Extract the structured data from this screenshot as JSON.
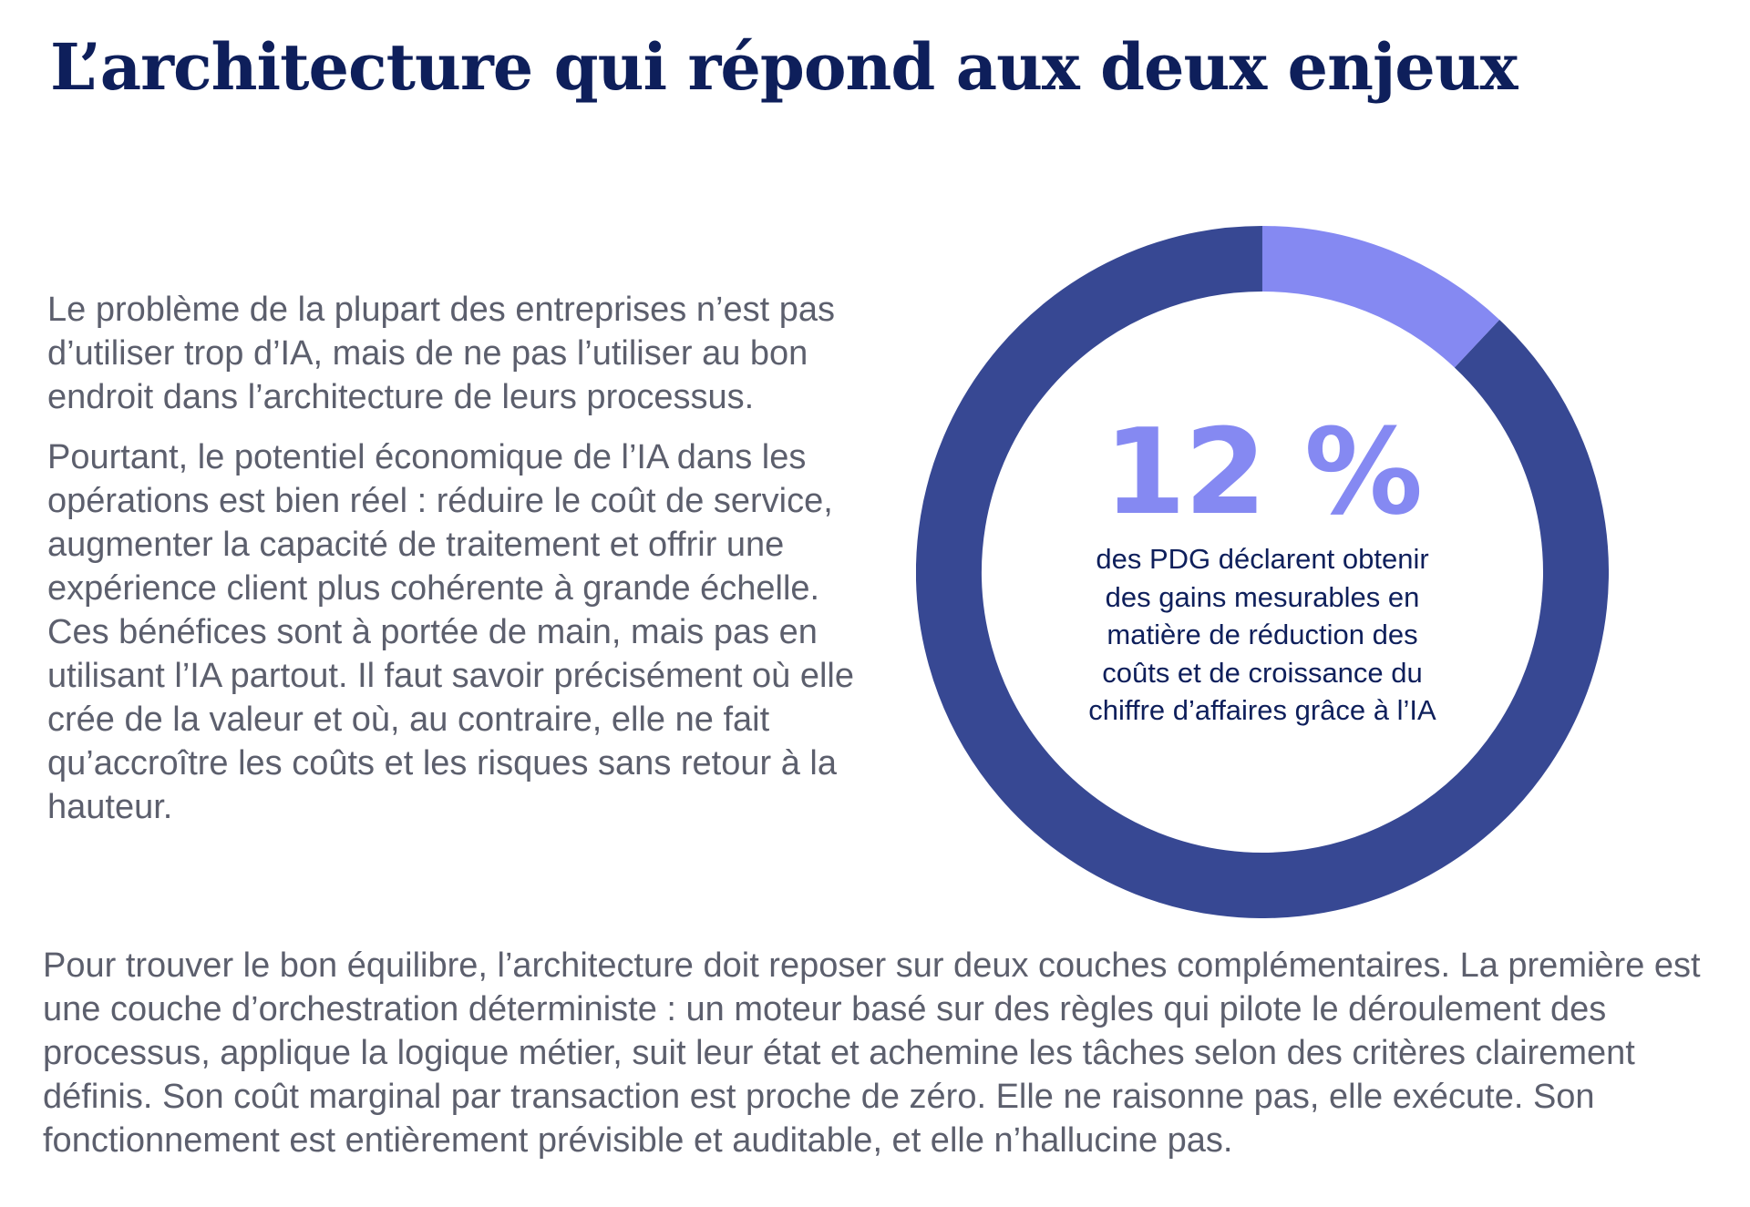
{
  "title": "L’architecture qui répond aux deux enjeux",
  "intro": {
    "paragraph_1": "Le problème de la plupart des entreprises n’est pas d’utiliser trop d’IA, mais de ne pas l’utiliser au bon endroit dans l’architecture de leurs processus.",
    "paragraph_2": "Pourtant, le potentiel économique de l’IA dans les opérations est bien réel : réduire le coût de service, augmenter la capacité de traitement et offrir une expérience client plus cohérente à grande échelle. Ces bénéfices sont à portée de main, mais pas en utilisant l’IA partout. Il faut savoir précisément où elle crée de la valeur et où, au contraire, elle ne fait qu’accroître les coûts et les risques sans retour à la hauteur."
  },
  "stat": {
    "value_label": "12 %",
    "percent": 12,
    "caption": "des PDG déclarent obtenir des gains mesurables en matière de réduction des coûts et de croissance du chiffre d’affaires grâce à l’IA",
    "colors": {
      "highlight": "#8589f2",
      "remainder": "#374893"
    }
  },
  "bottom_paragraph": "Pour trouver le bon équilibre, l’architecture doit reposer sur deux couches complémentaires. La première est une couche d’orchestration déterministe : un moteur basé sur des règles qui pilote le déroulement des processus, applique la logique métier, suit leur état et achemine les tâches selon des critères clairement définis. Son coût marginal par transaction est proche de zéro. Elle ne raisonne pas, elle exécute. Son fonctionnement est entièrement prévisible et auditable, et elle n’hallucine pas."
}
